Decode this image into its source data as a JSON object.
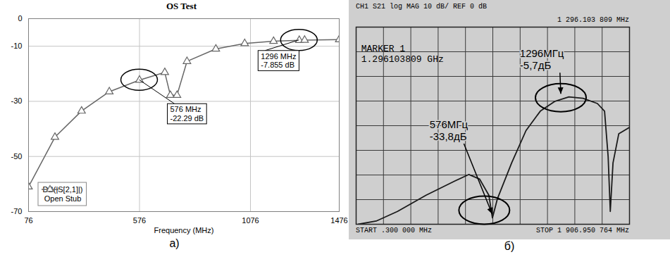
{
  "chart_data": [
    {
      "type": "line",
      "title": "OS Test",
      "caption": "а)",
      "x_label": "Frequency (MHz)",
      "x": [
        76,
        195,
        315,
        440,
        576,
        690,
        715,
        745,
        790,
        920,
        1050,
        1180,
        1296,
        1320,
        1476
      ],
      "series": [
        {
          "name": "DB(|S[2,1]|)\nOpen Stub",
          "color": "#666666",
          "marker": "triangle",
          "values": [
            -61,
            -43,
            -33.5,
            -26.5,
            -22.29,
            -19.5,
            -27.8,
            -27.8,
            -15.5,
            -11,
            -9,
            -8.2,
            -7.855,
            -7.8,
            -7.6
          ]
        }
      ],
      "xlim": [
        76,
        1476
      ],
      "xticks": [
        76,
        576,
        1076,
        1476
      ],
      "ylim": [
        -70,
        0
      ],
      "yticks": [
        0,
        -10,
        -30,
        -50,
        -70
      ],
      "grid": true,
      "legend": "bottom-left",
      "annotations": [
        {
          "text": "576 MHz\n-22.29 dB",
          "x": 576,
          "y": -22.29
        },
        {
          "text": "1296 MHz\n-7.855 dB",
          "x": 1296,
          "y": -7.855
        }
      ]
    },
    {
      "type": "line",
      "subtitle": "CH1 S21 log MAG 10 dB/ REF 0 dB",
      "caption": "б)",
      "x": [
        15,
        140,
        289,
        488,
        687,
        787,
        862,
        926,
        951,
        986,
        1085,
        1185,
        1285,
        1384,
        1484,
        1583,
        1683,
        1733,
        1758,
        1773,
        1792,
        1832,
        1906
      ],
      "values": [
        -80,
        -78.7,
        -74.8,
        -68.2,
        -62.5,
        -59.8,
        -61.7,
        -68.2,
        -77.4,
        -69.6,
        -55.1,
        -42,
        -34.1,
        -30.2,
        -28.3,
        -28.9,
        -31,
        -34.1,
        -52.5,
        -74.8,
        -55.1,
        -43.3,
        -40.7
      ],
      "color": "#1a1a1a",
      "xlim": [
        0.3,
        1906.950764
      ],
      "xticks": [
        0.3,
        190.9650764,
        381.6301528,
        572.2952292,
        762.9603056,
        953.625382,
        1144.2904584,
        1334.9555348,
        1525.6206112,
        1716.2856876,
        1906.950764
      ],
      "ylim": [
        -80,
        0
      ],
      "yticks": [
        0,
        -10,
        -20,
        -30,
        -40,
        -50,
        -60,
        -70,
        -80
      ],
      "grid": true,
      "tick_labels": false,
      "annotations": [
        {
          "text": "MARKER 1\n1.296103809 GHz"
        },
        {
          "text": "1 296.103 809 MHz"
        },
        {
          "text": "START .300 000 MHz"
        },
        {
          "text": "STOP 1 906.950 764 MHz"
        },
        {
          "text": "576МГц\n-33,8дБ"
        },
        {
          "text": "1296МГц\n-5,7дБ"
        }
      ]
    }
  ]
}
